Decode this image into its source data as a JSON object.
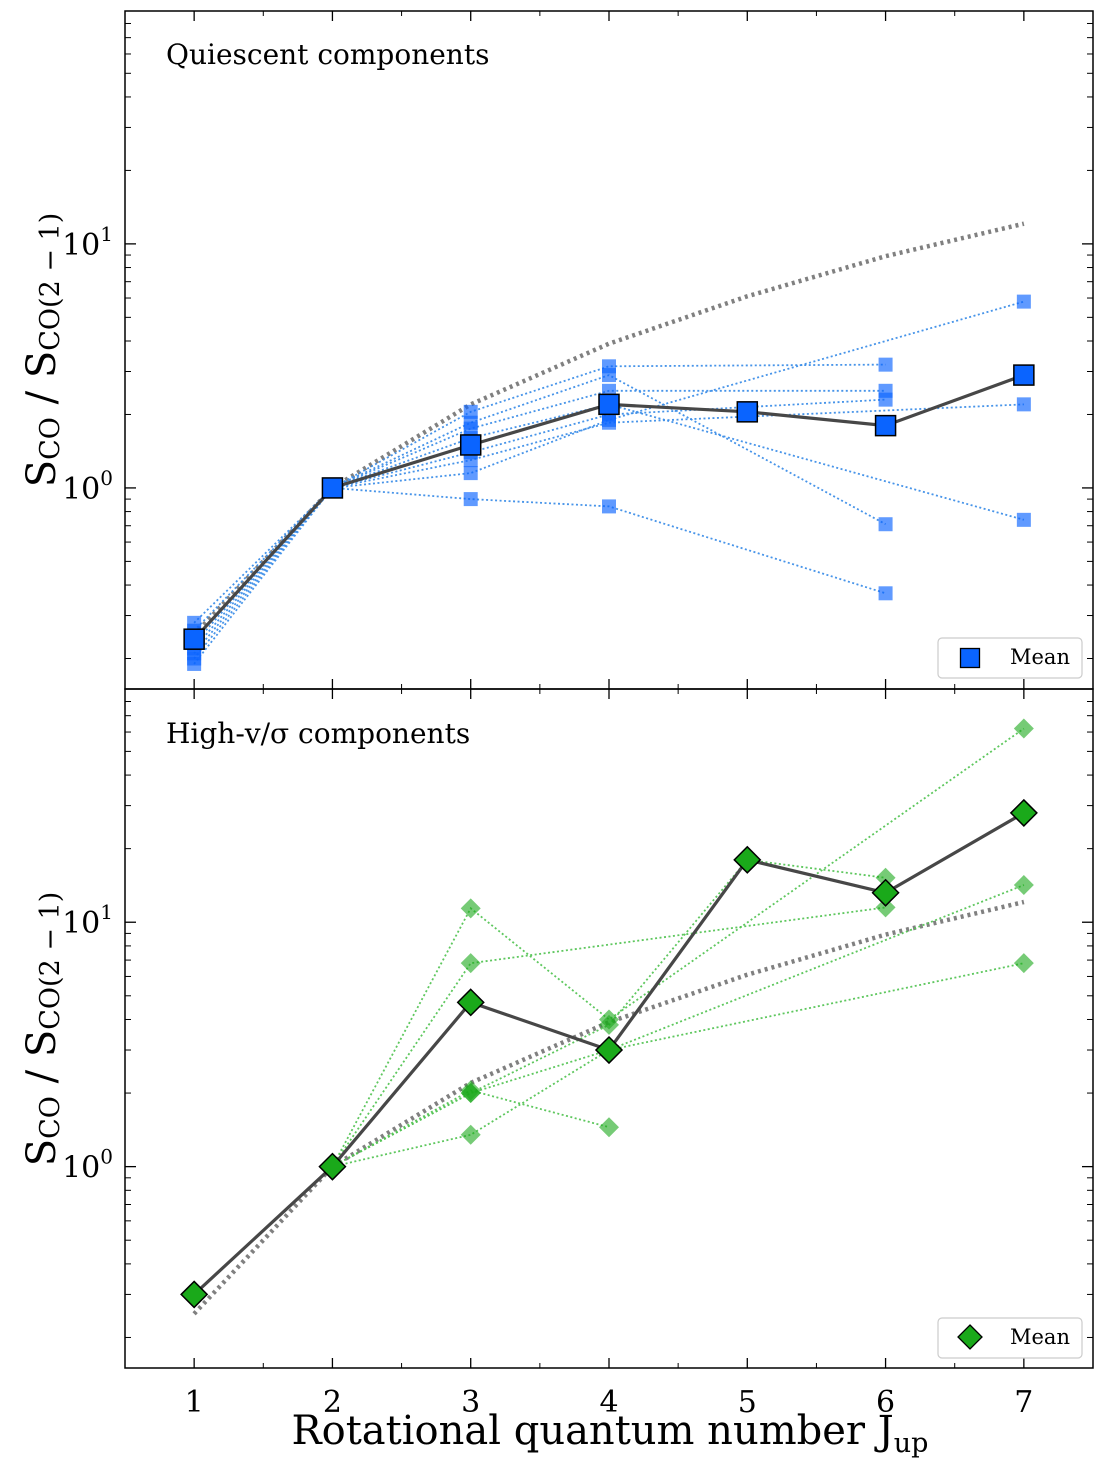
{
  "figure": {
    "xlabel": "Rotational quantum number J",
    "xlabel_sub": "up",
    "ylabel": "S",
    "ylabel_sub_num": "CO",
    "ylabel_mid": " / S",
    "ylabel_sub_den": "CO(2 − 1)"
  },
  "colors": {
    "quiescent": "#0a64ff",
    "quiescent_line": "#3d8ee8",
    "highv": "#1aa91a",
    "highv_line": "#55c455",
    "mean_line": "#474747",
    "model": "#808080"
  },
  "chart_data": [
    {
      "type": "line",
      "panel_label": "Quiescent components",
      "xlim": [
        0.5,
        7.5
      ],
      "ylim": [
        0.15,
        90
      ],
      "yscale": "log",
      "x_ticks": [
        1,
        2,
        3,
        4,
        5,
        6,
        7
      ],
      "y_ticks": [
        {
          "value": 1,
          "base": "10",
          "exp": "0"
        },
        {
          "value": 10,
          "base": "10",
          "exp": "1"
        }
      ],
      "legend": {
        "label": "Mean",
        "marker": "square",
        "placement": "lower-right"
      },
      "mean": {
        "x": [
          1,
          2,
          3,
          4,
          5,
          6,
          7
        ],
        "y": [
          0.24,
          1.0,
          1.5,
          2.2,
          2.05,
          1.8,
          2.9
        ]
      },
      "model": {
        "x": [
          1,
          2,
          3,
          4,
          5,
          6,
          7
        ],
        "y": [
          0.25,
          1.0,
          2.2,
          3.9,
          6.1,
          8.9,
          12.1
        ]
      },
      "series": [
        {
          "x": [
            1,
            2,
            3,
            4,
            7
          ],
          "y": [
            0.28,
            1.0,
            1.15,
            1.9,
            5.8
          ]
        },
        {
          "x": [
            1,
            2,
            3,
            4,
            6
          ],
          "y": [
            0.26,
            1.0,
            2.05,
            3.15,
            3.2
          ]
        },
        {
          "x": [
            1,
            2,
            3,
            4,
            6
          ],
          "y": [
            0.22,
            1.0,
            1.75,
            2.5,
            2.5
          ]
        },
        {
          "x": [
            1,
            2,
            3,
            4,
            6
          ],
          "y": [
            0.24,
            1.0,
            1.4,
            2.0,
            2.3
          ]
        },
        {
          "x": [
            1,
            2,
            3,
            4,
            7
          ],
          "y": [
            0.2,
            1.0,
            1.3,
            1.85,
            2.2
          ]
        },
        {
          "x": [
            1,
            2,
            3,
            4,
            7
          ],
          "y": [
            0.23,
            1.0,
            1.6,
            2.2,
            0.74
          ]
        },
        {
          "x": [
            1,
            2,
            3,
            4,
            6
          ],
          "y": [
            0.21,
            1.0,
            1.85,
            2.9,
            0.71
          ]
        },
        {
          "x": [
            1,
            2,
            3,
            4,
            6
          ],
          "y": [
            0.19,
            1.0,
            0.9,
            0.84,
            0.37
          ]
        }
      ]
    },
    {
      "type": "line",
      "panel_label": "High-v/σ components",
      "xlim": [
        0.5,
        7.5
      ],
      "ylim": [
        0.15,
        90
      ],
      "yscale": "log",
      "x_ticks": [
        1,
        2,
        3,
        4,
        5,
        6,
        7
      ],
      "y_ticks": [
        {
          "value": 1,
          "base": "10",
          "exp": "0"
        },
        {
          "value": 10,
          "base": "10",
          "exp": "1"
        }
      ],
      "legend": {
        "label": "Mean",
        "marker": "diamond",
        "placement": "lower-right"
      },
      "mean": {
        "x": [
          1,
          2,
          3,
          4,
          5,
          6,
          7
        ],
        "y": [
          0.3,
          1.0,
          4.7,
          3.0,
          18.0,
          13.2,
          28.0
        ]
      },
      "model": {
        "x": [
          1,
          2,
          3,
          4,
          5,
          6,
          7
        ],
        "y": [
          0.25,
          1.0,
          2.2,
          3.9,
          6.1,
          8.9,
          12.1
        ]
      },
      "series": [
        {
          "x": [
            2,
            3,
            4,
            7
          ],
          "y": [
            1.0,
            11.4,
            4.0,
            62
          ]
        },
        {
          "x": [
            2,
            3,
            6
          ],
          "y": [
            1.0,
            6.8,
            11.5
          ]
        },
        {
          "x": [
            2,
            3,
            4,
            5,
            6
          ],
          "y": [
            1.0,
            2.0,
            3.8,
            18.0,
            15.2
          ]
        },
        {
          "x": [
            2,
            3,
            4,
            7
          ],
          "y": [
            1.0,
            2.0,
            3.0,
            14.2
          ]
        },
        {
          "x": [
            2,
            3,
            4,
            7
          ],
          "y": [
            1.0,
            1.35,
            3.0,
            6.8
          ]
        },
        {
          "x": [
            2,
            3,
            4
          ],
          "y": [
            1.0,
            2.05,
            1.45
          ]
        }
      ]
    }
  ]
}
